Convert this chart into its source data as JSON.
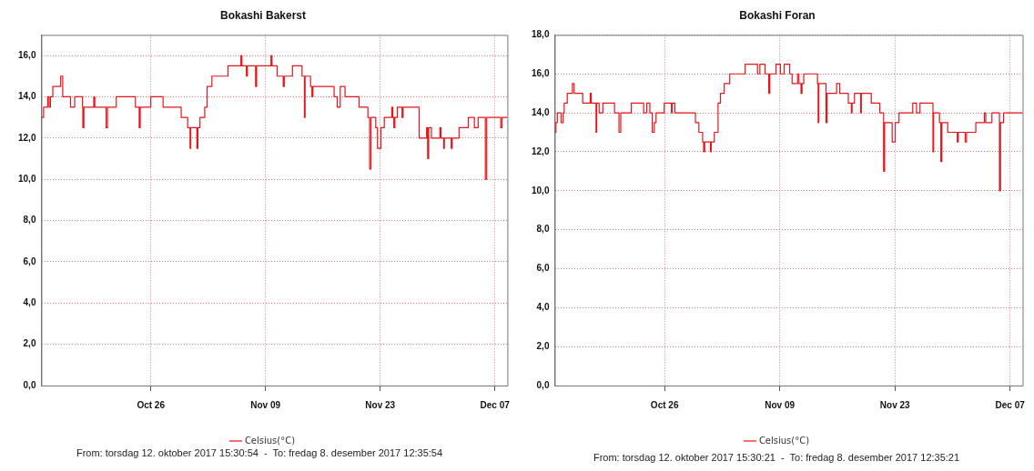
{
  "chart_data": [
    {
      "type": "step",
      "title": "Bokashi Bakerst",
      "legend": "bottom",
      "grid": true,
      "marker": "none",
      "line_style": "solid",
      "annotations": [
        "From: torsdag 12. oktober 2017 15:30:54  -  To: fredag 8. desember 2017 12:35:54"
      ],
      "xlim": [
        "2017-10-12T15:30",
        "2017-12-08T12:35"
      ],
      "xticks": [
        {
          "value": "2017-10-26",
          "label": "Oct 26"
        },
        {
          "value": "2017-11-09",
          "label": "Nov 09"
        },
        {
          "value": "2017-11-23",
          "label": "Nov 23"
        },
        {
          "value": "2017-12-07",
          "label": "Dec 07"
        }
      ],
      "ylim": [
        0,
        17
      ],
      "yticks": [
        {
          "value": 0,
          "label": "0,0"
        },
        {
          "value": 2,
          "label": "2,0"
        },
        {
          "value": 4,
          "label": "4,0"
        },
        {
          "value": 6,
          "label": "6,0"
        },
        {
          "value": 8,
          "label": "8,0"
        },
        {
          "value": 10,
          "label": "10,0"
        },
        {
          "value": 12,
          "label": "12,0"
        },
        {
          "value": 14,
          "label": "14,0"
        },
        {
          "value": 16,
          "label": "16,0"
        }
      ],
      "x": [
        "2017-10-12T15:30",
        "2017-10-12T22:00",
        "2017-10-13T10:00",
        "2017-10-13T14:00",
        "2017-10-13T18:00",
        "2017-10-14T01:00",
        "2017-10-15T00:00",
        "2017-10-15T06:00",
        "2017-10-16T05:00",
        "2017-10-16T17:00",
        "2017-10-17T16:00",
        "2017-10-17T17:00",
        "2017-10-17T20:00",
        "2017-10-19T01:00",
        "2017-10-19T04:00",
        "2017-10-20T13:00",
        "2017-10-20T17:00",
        "2017-10-21T19:00",
        "2017-10-24T03:00",
        "2017-10-24T14:00",
        "2017-10-24T17:00",
        "2017-10-26T00:00",
        "2017-10-27T12:00",
        "2017-10-29T17:00",
        "2017-10-30T12:00",
        "2017-10-30T19:00",
        "2017-10-30T21:00",
        "2017-10-31T15:00",
        "2017-10-31T18:00",
        "2017-11-01T00:00",
        "2017-11-01T14:00",
        "2017-11-01T21:00",
        "2017-11-02T11:00",
        "2017-11-04T10:00",
        "2017-11-06T00:00",
        "2017-11-06T03:00",
        "2017-11-06T16:00",
        "2017-11-06T19:00",
        "2017-11-07T19:00",
        "2017-11-07T22:00",
        "2017-11-09T16:00",
        "2017-11-09T19:00",
        "2017-11-10T10:00",
        "2017-11-11T04:00",
        "2017-11-11T07:00",
        "2017-11-12T07:00",
        "2017-11-13T11:00",
        "2017-11-13T18:00",
        "2017-11-13T20:00",
        "2017-11-14T12:00",
        "2017-11-14T16:00",
        "2017-11-14T19:00",
        "2017-11-17T09:00",
        "2017-11-17T18:00",
        "2017-11-18T03:00",
        "2017-11-18T17:00",
        "2017-11-20T10:00",
        "2017-11-21T12:00",
        "2017-11-21T17:00",
        "2017-11-21T21:00",
        "2017-11-22T11:00",
        "2017-11-22T16:00",
        "2017-11-23T02:00",
        "2017-11-23T12:00",
        "2017-11-24T10:00",
        "2017-11-24T13:00",
        "2017-11-24T16:00",
        "2017-11-24T19:00",
        "2017-11-25T02:00",
        "2017-11-25T16:00",
        "2017-11-25T19:00",
        "2017-11-27T18:00",
        "2017-11-28T16:00",
        "2017-11-28T19:00",
        "2017-11-28T22:00",
        "2017-11-29T06:00",
        "2017-11-30T07:00",
        "2017-11-30T10:00",
        "2017-11-30T18:00",
        "2017-11-30T20:00",
        "2017-12-01T16:00",
        "2017-12-01T19:00",
        "2017-12-02T15:00",
        "2017-12-03T18:00",
        "2017-12-04T12:00",
        "2017-12-04T23:00",
        "2017-12-05T20:00",
        "2017-12-06T00:00",
        "2017-12-07T17:00",
        "2017-12-07T21:00",
        "2017-12-08T12:35"
      ],
      "series": [
        {
          "name": "Celsius(°C)",
          "color": "#e8141b",
          "values": [
            13,
            13.5,
            14,
            13.5,
            14,
            14.5,
            15,
            14,
            13.5,
            14,
            13.5,
            12.5,
            13.5,
            14,
            13.5,
            12.5,
            13.5,
            14,
            13.5,
            12.5,
            13.5,
            14,
            13.5,
            13,
            12.5,
            11.5,
            12.5,
            11.5,
            12.5,
            13,
            13.5,
            14.5,
            15,
            15.5,
            16,
            15.5,
            15,
            15.5,
            14.5,
            15.5,
            16,
            15.5,
            15,
            14.5,
            15,
            15.5,
            15,
            13,
            15,
            14.5,
            14,
            14.5,
            14,
            13.5,
            14.5,
            14,
            13.5,
            13,
            10.5,
            13,
            12.5,
            11.5,
            12.5,
            13,
            13.5,
            13,
            12.5,
            13,
            13.5,
            13,
            13.5,
            12,
            12.5,
            11,
            12.5,
            12,
            12.5,
            12,
            11.5,
            12,
            11.5,
            12,
            12.5,
            13,
            12.5,
            13,
            10,
            13,
            12.5,
            13,
            13
          ]
        }
      ]
    },
    {
      "type": "step",
      "title": "Bokashi Foran",
      "legend": "bottom",
      "grid": true,
      "marker": "none",
      "line_style": "solid",
      "annotations": [
        "From: torsdag 12. oktober 2017 15:30:21  -  To: fredag 8. desember 2017 12:35:21"
      ],
      "xlim": [
        "2017-10-12T15:30",
        "2017-12-08T12:35"
      ],
      "xticks": [
        {
          "value": "2017-10-26",
          "label": "Oct 26"
        },
        {
          "value": "2017-11-09",
          "label": "Nov 09"
        },
        {
          "value": "2017-11-23",
          "label": "Nov 23"
        },
        {
          "value": "2017-12-07",
          "label": "Dec 07"
        }
      ],
      "ylim": [
        0,
        18
      ],
      "yticks": [
        {
          "value": 0,
          "label": "0,0"
        },
        {
          "value": 2,
          "label": "2,0"
        },
        {
          "value": 4,
          "label": "4,0"
        },
        {
          "value": 6,
          "label": "6,0"
        },
        {
          "value": 8,
          "label": "8,0"
        },
        {
          "value": 10,
          "label": "10,0"
        },
        {
          "value": 12,
          "label": "12,0"
        },
        {
          "value": 14,
          "label": "14,0"
        },
        {
          "value": 16,
          "label": "16,0"
        },
        {
          "value": 18,
          "label": "18,0"
        }
      ],
      "x": [
        "2017-10-12T15:30",
        "2017-10-12T19:00",
        "2017-10-12T23:00",
        "2017-10-13T10:00",
        "2017-10-13T16:00",
        "2017-10-13T19:00",
        "2017-10-14T04:00",
        "2017-10-14T19:00",
        "2017-10-15T00:00",
        "2017-10-16T01:00",
        "2017-10-16T23:00",
        "2017-10-17T02:00",
        "2017-10-17T16:00",
        "2017-10-17T18:00",
        "2017-10-18T01:00",
        "2017-10-18T12:00",
        "2017-10-19T22:00",
        "2017-10-20T11:00",
        "2017-10-20T16:00",
        "2017-10-21T23:00",
        "2017-10-23T11:00",
        "2017-10-23T20:00",
        "2017-10-24T05:00",
        "2017-10-24T12:00",
        "2017-10-24T18:00",
        "2017-10-24T23:00",
        "2017-10-25T23:00",
        "2017-10-26T20:00",
        "2017-10-26T22:00",
        "2017-10-27T06:00",
        "2017-10-29T18:00",
        "2017-10-30T04:00",
        "2017-10-30T15:00",
        "2017-10-30T18:00",
        "2017-10-30T21:00",
        "2017-10-31T14:00",
        "2017-10-31T16:00",
        "2017-11-01T01:00",
        "2017-11-01T12:00",
        "2017-11-01T19:00",
        "2017-11-02T06:00",
        "2017-11-02T22:00",
        "2017-11-04T19:00",
        "2017-11-06T07:00",
        "2017-11-06T14:00",
        "2017-11-07T05:00",
        "2017-11-07T16:00",
        "2017-11-07T19:00",
        "2017-11-08T13:00",
        "2017-11-09T02:00",
        "2017-11-09T13:00",
        "2017-11-10T05:00",
        "2017-11-10T12:00",
        "2017-11-11T04:00",
        "2017-11-11T08:00",
        "2017-11-11T14:00",
        "2017-11-11T17:00",
        "2017-11-11T22:00",
        "2017-11-13T14:00",
        "2017-11-13T16:00",
        "2017-11-13T18:00",
        "2017-11-14T15:00",
        "2017-11-14T18:00",
        "2017-11-15T22:00",
        "2017-11-16T07:00",
        "2017-11-17T08:00",
        "2017-11-17T17:00",
        "2017-11-17T19:00",
        "2017-11-18T02:00",
        "2017-11-18T20:00",
        "2017-11-18T22:00",
        "2017-11-20T03:00",
        "2017-11-21T04:00",
        "2017-11-21T15:00",
        "2017-11-21T18:00",
        "2017-11-22T16:00",
        "2017-11-23T01:00",
        "2017-11-23T12:00",
        "2017-11-25T04:00",
        "2017-11-25T15:00",
        "2017-11-26T01:00",
        "2017-11-27T15:00",
        "2017-11-27T17:00",
        "2017-11-28T10:00",
        "2017-11-28T14:00",
        "2017-11-28T17:00",
        "2017-11-29T10:00",
        "2017-11-30T14:00",
        "2017-11-30T17:00",
        "2017-12-01T13:00",
        "2017-12-01T17:00",
        "2017-12-02T20:00",
        "2017-12-03T21:00",
        "2017-12-04T01:00",
        "2017-12-04T19:00",
        "2017-12-05T17:00",
        "2017-12-05T20:00",
        "2017-12-06T05:00",
        "2017-12-08T12:35"
      ],
      "series": [
        {
          "name": "Celsius(°C)",
          "color": "#e8141b",
          "values": [
            13,
            13.5,
            14,
            13.5,
            14,
            14.5,
            15,
            15.5,
            15,
            14.5,
            15,
            14.5,
            13,
            14.5,
            14,
            14.5,
            14,
            13,
            14,
            14.5,
            14,
            14.5,
            14,
            13,
            13.5,
            14,
            14.5,
            14,
            14.5,
            14,
            13.5,
            13,
            12.5,
            12,
            12.5,
            12,
            12.5,
            13,
            14.5,
            15,
            15.5,
            16,
            16.5,
            16,
            16.5,
            16,
            15,
            16,
            16.5,
            16,
            16.5,
            16,
            15.5,
            16,
            15.5,
            15,
            15.5,
            16,
            15.5,
            13.5,
            15.5,
            13.5,
            15,
            15.5,
            15,
            14.5,
            14,
            14.5,
            15,
            14,
            15,
            14.5,
            14,
            11,
            13.5,
            12.5,
            13.5,
            14,
            14.5,
            14,
            14.5,
            12,
            14,
            13.5,
            11.5,
            13.5,
            13,
            12.5,
            13,
            12.5,
            13,
            13.5,
            14,
            13.5,
            14,
            10,
            13.5,
            14,
            14
          ]
        }
      ]
    }
  ]
}
